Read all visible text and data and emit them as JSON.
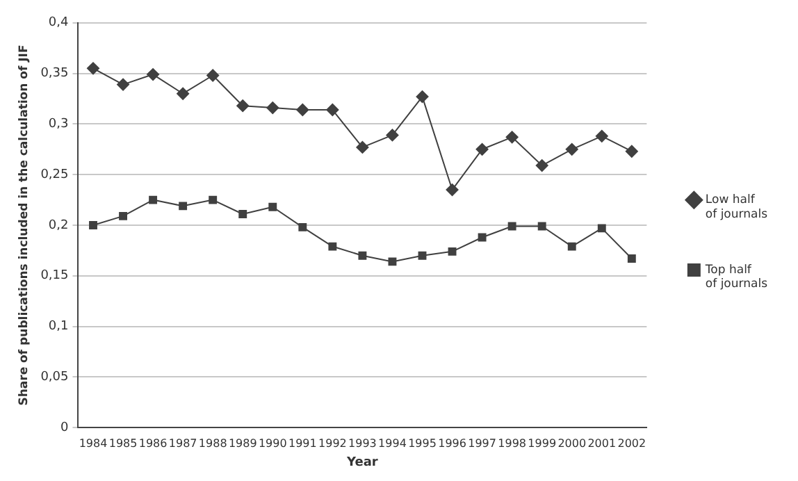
{
  "chart_data": {
    "type": "line",
    "xlabel": "Year",
    "ylabel": "Share of publications included in the calculation of JIF",
    "categories": [
      "1984",
      "1985",
      "1986",
      "1987",
      "1988",
      "1989",
      "1990",
      "1991",
      "1992",
      "1993",
      "1994",
      "1995",
      "1996",
      "1997",
      "1998",
      "1999",
      "2000",
      "2001",
      "2002"
    ],
    "series": [
      {
        "name": "Low half of journals",
        "color": "#404040",
        "marker": "diamond",
        "values": [
          0.355,
          0.339,
          0.349,
          0.33,
          0.348,
          0.318,
          0.316,
          0.314,
          0.314,
          0.277,
          0.289,
          0.327,
          0.235,
          0.275,
          0.287,
          0.259,
          0.275,
          0.288,
          0.273
        ]
      },
      {
        "name": "Top half of journals",
        "color": "#404040",
        "marker": "square",
        "values": [
          0.2,
          0.209,
          0.225,
          0.219,
          0.225,
          0.211,
          0.218,
          0.198,
          0.179,
          0.17,
          0.164,
          0.17,
          0.174,
          0.188,
          0.199,
          0.199,
          0.179,
          0.197,
          0.167
        ]
      }
    ],
    "ylim": [
      0,
      0.4
    ],
    "yticks": [
      0,
      {
        "value": 0.05,
        "label": "0,05"
      },
      {
        "value": 0.1,
        "label": "0,1"
      },
      {
        "value": 0.15,
        "label": "0,15"
      },
      {
        "value": 0.2,
        "label": "0,2"
      },
      {
        "value": 0.25,
        "label": "0,25"
      },
      {
        "value": 0.3,
        "label": "0,3"
      },
      {
        "value": 0.35,
        "label": "0,35"
      },
      {
        "value": 0.4,
        "label": "0,4"
      }
    ],
    "grid": "y",
    "legend": "right",
    "line_style": "solid"
  }
}
